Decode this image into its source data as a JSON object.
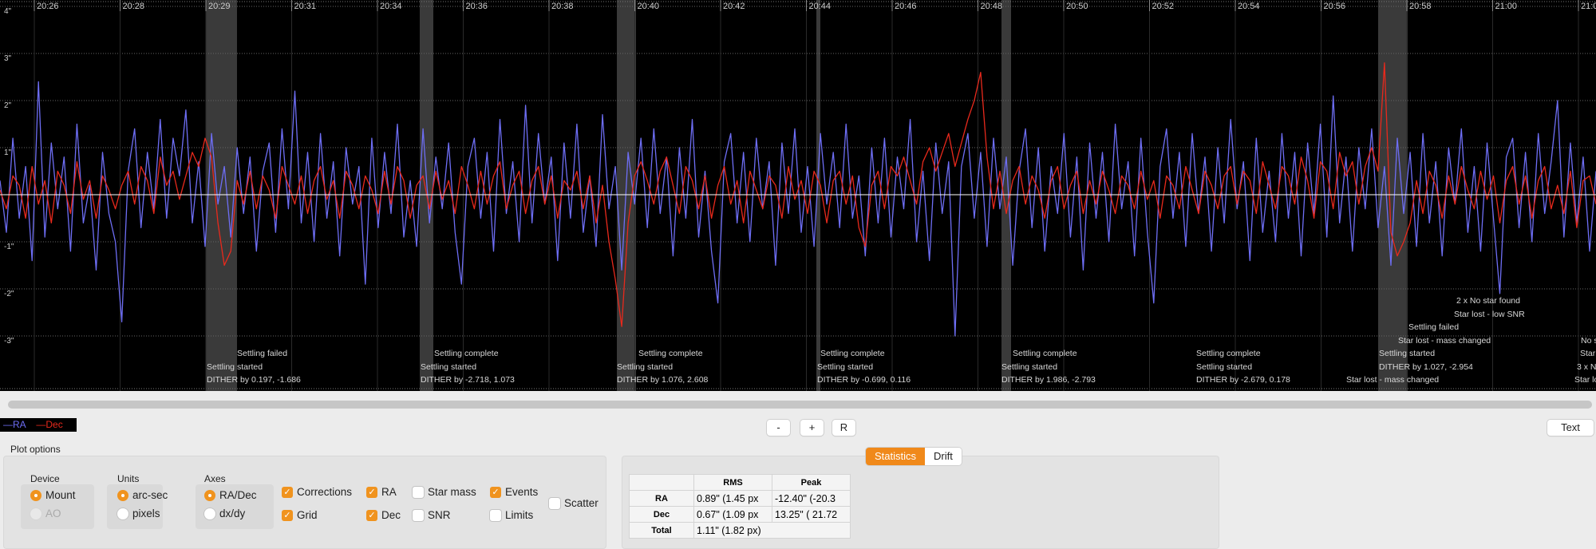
{
  "graph": {
    "colors": {
      "ra": "#6e6ef5",
      "dec": "#e8291c",
      "background": "#000000",
      "zero_line": "#ffffff",
      "settle_band": "#3a3a3a"
    },
    "y_unit": "arc-sec",
    "y_ticks": [
      "4\"",
      "3\"",
      "2\"",
      "1\"",
      "-1\"",
      "-2\"",
      "-3\""
    ],
    "x_ticks": [
      "20:26",
      "20:28",
      "20:29",
      "20:31",
      "20:34",
      "20:36",
      "20:38",
      "20:40",
      "20:42",
      "20:44",
      "20:46",
      "20:48",
      "20:50",
      "20:52",
      "20:54",
      "20:56",
      "20:58",
      "21:00",
      "21:0"
    ],
    "events": [
      "DITHER by 0.197, -1.686",
      "Settling started",
      "Settling failed",
      "DITHER by -2.718, 1.073",
      "Settling started",
      "Settling complete",
      "DITHER by 1.076, 2.608",
      "Settling started",
      "Settling complete",
      "DITHER by -0.699, 0.116",
      "Settling started",
      "Settling complete",
      "DITHER by 1.986, -2.793",
      "Settling started",
      "Settling complete",
      "DITHER by -2.679, 0.178",
      "Settling started",
      "Settling complete",
      "Star lost - mass changed",
      "DITHER by 1.027, -2.954",
      "Settling started",
      "Star lost - mass changed",
      "Settling failed",
      "Star lost - low SNR",
      "2 x No star found",
      "Star lo",
      "3 x N",
      "Star",
      "No s"
    ]
  },
  "chart_data": {
    "type": "line",
    "ylabel": "",
    "ylim": [
      -4,
      4
    ],
    "grid": true,
    "legend": "bottom-left",
    "series": [
      {
        "name": "RA",
        "color": "#6e6ef5",
        "values": [
          0.3,
          -0.8,
          1.2,
          -0.5,
          0.6,
          -1.4,
          2.4,
          -0.9,
          1.1,
          -0.3,
          0.8,
          -1.2,
          1.5,
          -0.6,
          0.2,
          -1.6,
          0.9,
          -0.4,
          -1.0,
          -2.7,
          0.5,
          1.4,
          -0.7,
          0.9,
          -0.3,
          1.6,
          -0.5,
          1.2,
          0.4,
          1.8,
          -0.6,
          0.7,
          -1.1,
          1.3,
          -0.2,
          0.6,
          -0.9,
          1.0,
          -0.4,
          0.8,
          -1.2,
          0.5,
          1.1,
          -0.8,
          1.4,
          -0.3,
          2.2,
          -0.6,
          0.9,
          -1.0,
          1.3,
          -0.5,
          0.7,
          -1.3,
          1.0,
          -0.2,
          0.6,
          -1.9,
          1.2,
          -0.7,
          0.9,
          -0.4,
          1.5,
          -0.9,
          0.3,
          -1.1,
          1.4,
          -0.6,
          0.8,
          -0.3,
          1.1,
          -0.8,
          -1.9,
          0.6,
          1.2,
          -0.5,
          0.9,
          -1.2,
          1.6,
          -0.4,
          0.7,
          -1.0,
          1.9,
          -0.6,
          1.3,
          -0.2,
          0.8,
          -1.4,
          1.1,
          -0.5,
          1.5,
          -0.8,
          0.4,
          -1.1,
          1.7,
          -0.3,
          0.6,
          -1.6,
          0.9,
          -0.2,
          1.2,
          -0.7,
          1.4,
          -0.4,
          0.8,
          -1.3,
          1.0,
          -0.5,
          1.6,
          -0.9,
          0.5,
          -1.2,
          -2.3,
          0.7,
          1.3,
          -0.6,
          0.9,
          -1.0,
          1.2,
          -0.3,
          0.7,
          -1.5,
          1.1,
          -0.4,
          1.4,
          -0.8,
          0.6,
          -1.1,
          1.3,
          -0.2,
          0.9,
          -0.7,
          1.5,
          -0.5,
          0.4,
          -1.3,
          1.0,
          -0.6,
          1.2,
          -0.9,
          0.8,
          -0.3,
          1.6,
          -1.0,
          0.5,
          -1.4,
          1.1,
          -0.4,
          0.7,
          -3.0,
          0.6,
          1.3,
          -0.5,
          0.9,
          -1.1,
          1.2,
          -0.3,
          0.8,
          -1.5,
          0.5,
          1.4,
          -0.7,
          1.0,
          -1.2,
          0.6,
          -0.4,
          1.3,
          -0.9,
          0.8,
          -1.6,
          1.1,
          -0.5,
          0.9,
          -1.0,
          1.5,
          -0.3,
          0.7,
          -1.3,
          1.2,
          -0.8,
          -2.3,
          0.6,
          1.4,
          -0.5,
          0.9,
          -1.1,
          1.3,
          -0.4,
          0.8,
          -1.2,
          1.0,
          -0.6,
          1.6,
          -0.3,
          0.7,
          -1.4,
          1.2,
          -0.8,
          0.5,
          -1.0,
          1.3,
          -0.5,
          0.9,
          -1.3,
          1.1,
          -0.4,
          1.5,
          -0.9,
          2.1,
          -0.6,
          0.8,
          -1.2,
          1.0,
          -0.3,
          1.4,
          -0.7,
          0.6,
          -1.5,
          1.2,
          -0.4,
          0.9,
          -1.1,
          1.3,
          -0.6,
          0.7,
          -1.3,
          1.0,
          -0.2,
          1.4,
          -0.8,
          0.6,
          -1.2,
          1.1,
          -0.5,
          -2.1,
          0.8,
          1.2,
          -0.7,
          0.9,
          -1.0,
          1.3,
          -0.4,
          0.7,
          2.0,
          -0.9,
          1.1,
          -0.6,
          0.8,
          -1.2,
          0.5
        ]
      },
      {
        "name": "Dec",
        "color": "#e8291c",
        "values": [
          0.1,
          -0.3,
          0.4,
          0.2,
          -0.5,
          0.6,
          -0.2,
          0.3,
          -0.6,
          0.5,
          0.2,
          -0.4,
          0.7,
          -0.1,
          0.3,
          -0.5,
          0.4,
          0.1,
          -0.3,
          0.2,
          0.5,
          -0.2,
          0.6,
          0.3,
          -0.4,
          0.8,
          0.2,
          0.5,
          -0.1,
          0.4,
          0.9,
          0.6,
          1.2,
          0.8,
          -0.6,
          -1.5,
          -1.2,
          0.3,
          -0.2,
          0.5,
          -0.3,
          0.4,
          0.1,
          -0.5,
          0.6,
          0.2,
          -0.2,
          0.4,
          -0.4,
          0.3,
          0.6,
          -0.1,
          0.3,
          -0.5,
          0.5,
          0.2,
          -0.3,
          0.4,
          0.1,
          -0.4,
          0.5,
          -0.2,
          0.6,
          0.3,
          -0.5,
          0.2,
          0.4,
          -0.3,
          0.5,
          -0.1,
          0.3,
          -0.4,
          0.6,
          0.2,
          -0.3,
          0.5,
          -0.2,
          0.4,
          0.7,
          -0.3,
          0.2,
          0.5,
          -0.4,
          0.3,
          0.6,
          -0.2,
          0.4,
          -0.5,
          0.3,
          0.1,
          0.5,
          -0.3,
          0.4,
          -0.6,
          0.2,
          -1.0,
          -1.8,
          -2.8,
          -0.6,
          0.4,
          0.7,
          0.3,
          -0.2,
          0.5,
          0.8,
          0.2,
          -0.4,
          0.6,
          0.3,
          -0.3,
          0.4,
          -0.5,
          0.2,
          0.6,
          -0.2,
          0.3,
          -0.6,
          0.5,
          0.1,
          -0.3,
          0.4,
          0.2,
          -0.5,
          0.6,
          -0.1,
          0.3,
          -0.4,
          0.5,
          0.2,
          -0.6,
          0.3,
          0.5,
          -0.2,
          0.4,
          -0.7,
          -1.1,
          0.2,
          0.5,
          -0.3,
          0.6,
          0.4,
          0.8,
          0.3,
          -0.2,
          0.7,
          1.0,
          0.5,
          0.9,
          1.3,
          0.6,
          1.1,
          1.6,
          2.0,
          2.6,
          0.8,
          -0.3,
          0.5,
          -0.4,
          0.3,
          0.6,
          -0.2,
          0.4,
          0.1,
          -0.5,
          0.3,
          0.6,
          -0.3,
          0.2,
          0.5,
          -0.4,
          0.3,
          -0.2,
          0.5,
          0.1,
          -0.4,
          0.4,
          0.2,
          -0.3,
          0.5,
          -0.1,
          0.3,
          -0.5,
          0.4,
          0.2,
          -0.3,
          0.6,
          0.1,
          -0.4,
          0.5,
          0.2,
          -0.3,
          0.4,
          0.6,
          -0.2,
          0.5,
          0.3,
          -0.4,
          0.7,
          0.2,
          -0.3,
          0.6,
          0.4,
          -0.2,
          0.8,
          0.3,
          -0.5,
          0.7,
          0.5,
          -0.3,
          0.9,
          0.4,
          0.7,
          -0.2,
          0.6,
          1.0,
          0.5,
          2.8,
          -0.8,
          -1.3,
          -1.0,
          -0.6,
          0.3,
          -0.4,
          0.5,
          0.2,
          -0.5,
          0.4,
          -0.2,
          0.6,
          0.1,
          -0.3,
          0.5,
          -0.1,
          0.4,
          -0.6,
          0.3,
          0.6,
          -0.2,
          0.4,
          -0.5,
          0.3,
          0.6,
          -0.3,
          0.2,
          -0.4,
          0.5,
          -0.7,
          0.3,
          0.4,
          -0.2
        ]
      }
    ]
  },
  "legend": {
    "ra": "—RA",
    "dec": "—Dec"
  },
  "zoom_controls": {
    "zoom_out": "-",
    "zoom_in": "+",
    "reset": "R",
    "text": "Text"
  },
  "plot_options": {
    "title": "Plot options",
    "device": {
      "label": "Device",
      "mount": "Mount",
      "ao": "AO",
      "selected": "Mount"
    },
    "units": {
      "label": "Units",
      "arcsec": "arc-sec",
      "pixels": "pixels",
      "selected": "arc-sec"
    },
    "axes": {
      "label": "Axes",
      "radec": "RA/Dec",
      "dxdy": "dx/dy",
      "selected": "RA/Dec"
    },
    "checks": {
      "corrections": {
        "label": "Corrections",
        "checked": true
      },
      "grid": {
        "label": "Grid",
        "checked": true
      },
      "ra": {
        "label": "RA",
        "checked": true
      },
      "dec": {
        "label": "Dec",
        "checked": true
      },
      "star_mass": {
        "label": "Star mass",
        "checked": false
      },
      "snr": {
        "label": "SNR",
        "checked": false
      },
      "events": {
        "label": "Events",
        "checked": true
      },
      "limits": {
        "label": "Limits",
        "checked": false
      },
      "scatter": {
        "label": "Scatter",
        "checked": false
      }
    },
    "accent": "#f0931e"
  },
  "stats": {
    "tabs": [
      "Statistics",
      "Drift"
    ],
    "active_tab": "Statistics",
    "headers": [
      "",
      "RMS",
      "Peak"
    ],
    "rows": [
      [
        "RA",
        "0.89\" (1.45 px",
        "-12.40\" (-20.3"
      ],
      [
        "Dec",
        "0.67\" (1.09 px",
        "13.25\" ( 21.72"
      ],
      [
        "Total",
        "1.11\" (1.82 px)",
        ""
      ]
    ]
  }
}
